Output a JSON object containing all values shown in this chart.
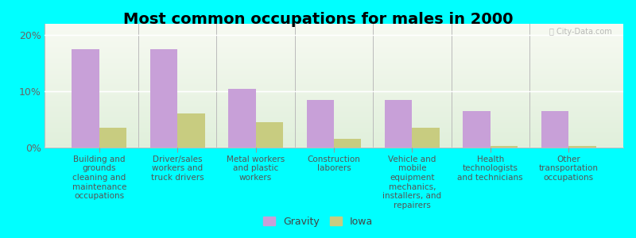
{
  "title": "Most common occupations for males in 2000",
  "background_color": "#00FFFF",
  "categories": [
    "Building and\ngrounds\ncleaning and\nmaintenance\noccupations",
    "Driver/sales\nworkers and\ntruck drivers",
    "Metal workers\nand plastic\nworkers",
    "Construction\nlaborers",
    "Vehicle and\nmobile\nequipment\nmechanics,\ninstallers, and\nrepairers",
    "Health\ntechnologists\nand technicians",
    "Other\ntransportation\noccupations"
  ],
  "gravity_values": [
    17.5,
    17.5,
    10.5,
    8.5,
    8.5,
    6.5,
    6.5
  ],
  "iowa_values": [
    3.5,
    6.0,
    4.5,
    1.5,
    3.5,
    0.3,
    0.3
  ],
  "gravity_color": "#c8a0d8",
  "iowa_color": "#c8cc80",
  "ylim": [
    0,
    22
  ],
  "yticks": [
    0,
    10,
    20
  ],
  "ytick_labels": [
    "0%",
    "10%",
    "20%"
  ],
  "legend_labels": [
    "Gravity",
    "Iowa"
  ],
  "watermark": "ⓘ City-Data.com",
  "bar_width": 0.35,
  "title_fontsize": 14,
  "tick_fontsize": 7.5,
  "legend_fontsize": 9
}
